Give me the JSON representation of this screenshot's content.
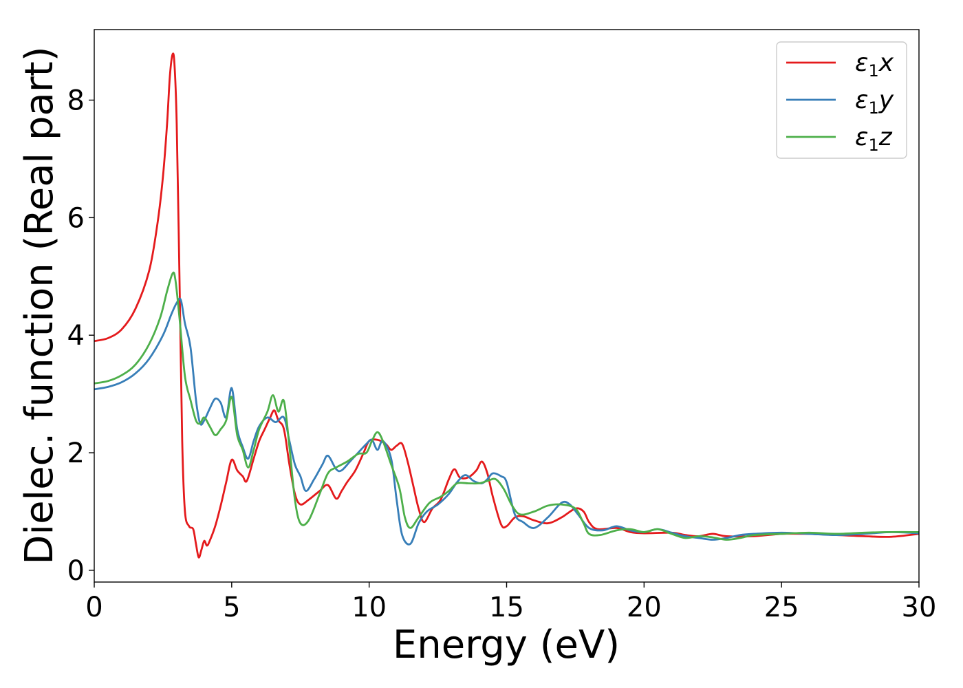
{
  "chart_data": {
    "type": "line",
    "title": "",
    "xlabel": "Energy (eV)",
    "ylabel": "Dielec. function (Real part)",
    "xlim": [
      0,
      30
    ],
    "ylim": [
      -0.2,
      9.2
    ],
    "xticks": [
      0,
      5,
      10,
      15,
      20,
      25,
      30
    ],
    "yticks": [
      0,
      2,
      4,
      6,
      8
    ],
    "grid": false,
    "legend_position": "top-right",
    "series": [
      {
        "name": "ε₁x",
        "legend_main": "ε",
        "legend_sub": "1",
        "legend_var": "x",
        "color": "#e41a1c",
        "points": [
          [
            0,
            3.9
          ],
          [
            0.5,
            3.95
          ],
          [
            1.0,
            4.1
          ],
          [
            1.5,
            4.45
          ],
          [
            2.0,
            5.1
          ],
          [
            2.3,
            5.9
          ],
          [
            2.5,
            6.7
          ],
          [
            2.65,
            7.6
          ],
          [
            2.75,
            8.4
          ],
          [
            2.85,
            8.78
          ],
          [
            2.92,
            8.6
          ],
          [
            3.0,
            7.6
          ],
          [
            3.1,
            5.0
          ],
          [
            3.2,
            2.2
          ],
          [
            3.3,
            1.0
          ],
          [
            3.45,
            0.75
          ],
          [
            3.6,
            0.7
          ],
          [
            3.7,
            0.45
          ],
          [
            3.8,
            0.22
          ],
          [
            3.9,
            0.35
          ],
          [
            4.0,
            0.5
          ],
          [
            4.1,
            0.42
          ],
          [
            4.2,
            0.5
          ],
          [
            4.4,
            0.75
          ],
          [
            4.6,
            1.1
          ],
          [
            4.8,
            1.5
          ],
          [
            5.0,
            1.88
          ],
          [
            5.2,
            1.7
          ],
          [
            5.4,
            1.6
          ],
          [
            5.55,
            1.52
          ],
          [
            5.8,
            1.9
          ],
          [
            6.0,
            2.2
          ],
          [
            6.2,
            2.4
          ],
          [
            6.4,
            2.6
          ],
          [
            6.55,
            2.72
          ],
          [
            6.7,
            2.55
          ],
          [
            6.9,
            2.4
          ],
          [
            7.1,
            1.8
          ],
          [
            7.3,
            1.3
          ],
          [
            7.5,
            1.12
          ],
          [
            7.8,
            1.2
          ],
          [
            8.2,
            1.35
          ],
          [
            8.5,
            1.45
          ],
          [
            8.8,
            1.22
          ],
          [
            9.0,
            1.35
          ],
          [
            9.2,
            1.5
          ],
          [
            9.5,
            1.7
          ],
          [
            9.8,
            2.0
          ],
          [
            10.0,
            2.2
          ],
          [
            10.3,
            2.22
          ],
          [
            10.6,
            2.15
          ],
          [
            10.8,
            2.05
          ],
          [
            11.0,
            2.12
          ],
          [
            11.2,
            2.15
          ],
          [
            11.4,
            1.85
          ],
          [
            11.6,
            1.45
          ],
          [
            11.8,
            1.05
          ],
          [
            12.0,
            0.82
          ],
          [
            12.3,
            1.05
          ],
          [
            12.6,
            1.2
          ],
          [
            12.9,
            1.55
          ],
          [
            13.1,
            1.72
          ],
          [
            13.3,
            1.58
          ],
          [
            13.6,
            1.58
          ],
          [
            13.9,
            1.7
          ],
          [
            14.1,
            1.85
          ],
          [
            14.3,
            1.65
          ],
          [
            14.5,
            1.25
          ],
          [
            14.8,
            0.78
          ],
          [
            15.0,
            0.75
          ],
          [
            15.3,
            0.9
          ],
          [
            15.6,
            0.92
          ],
          [
            16.0,
            0.85
          ],
          [
            16.5,
            0.8
          ],
          [
            17.0,
            0.9
          ],
          [
            17.5,
            1.05
          ],
          [
            17.8,
            1.0
          ],
          [
            18.0,
            0.82
          ],
          [
            18.3,
            0.7
          ],
          [
            19.0,
            0.72
          ],
          [
            19.5,
            0.65
          ],
          [
            20.0,
            0.63
          ],
          [
            21.0,
            0.64
          ],
          [
            21.5,
            0.6
          ],
          [
            22.0,
            0.58
          ],
          [
            22.5,
            0.62
          ],
          [
            23.0,
            0.58
          ],
          [
            24.0,
            0.58
          ],
          [
            25.0,
            0.62
          ],
          [
            26.0,
            0.62
          ],
          [
            27.0,
            0.6
          ],
          [
            28.0,
            0.58
          ],
          [
            29.0,
            0.57
          ],
          [
            30.0,
            0.62
          ]
        ]
      },
      {
        "name": "ε₁y",
        "legend_main": "ε",
        "legend_sub": "1",
        "legend_var": "y",
        "color": "#377eb8",
        "points": [
          [
            0,
            3.08
          ],
          [
            0.5,
            3.12
          ],
          [
            1.0,
            3.2
          ],
          [
            1.5,
            3.35
          ],
          [
            2.0,
            3.6
          ],
          [
            2.5,
            4.0
          ],
          [
            2.8,
            4.35
          ],
          [
            3.0,
            4.55
          ],
          [
            3.15,
            4.6
          ],
          [
            3.3,
            4.2
          ],
          [
            3.5,
            3.8
          ],
          [
            3.7,
            2.9
          ],
          [
            3.85,
            2.5
          ],
          [
            4.0,
            2.55
          ],
          [
            4.2,
            2.75
          ],
          [
            4.4,
            2.92
          ],
          [
            4.6,
            2.85
          ],
          [
            4.8,
            2.6
          ],
          [
            5.0,
            3.1
          ],
          [
            5.2,
            2.4
          ],
          [
            5.4,
            2.1
          ],
          [
            5.6,
            1.9
          ],
          [
            5.8,
            2.2
          ],
          [
            6.0,
            2.45
          ],
          [
            6.3,
            2.6
          ],
          [
            6.6,
            2.52
          ],
          [
            6.9,
            2.6
          ],
          [
            7.1,
            2.2
          ],
          [
            7.3,
            1.8
          ],
          [
            7.5,
            1.6
          ],
          [
            7.7,
            1.35
          ],
          [
            8.0,
            1.55
          ],
          [
            8.3,
            1.8
          ],
          [
            8.5,
            1.95
          ],
          [
            8.8,
            1.72
          ],
          [
            9.0,
            1.7
          ],
          [
            9.3,
            1.85
          ],
          [
            9.6,
            2.0
          ],
          [
            9.9,
            2.15
          ],
          [
            10.1,
            2.22
          ],
          [
            10.3,
            2.05
          ],
          [
            10.5,
            2.2
          ],
          [
            10.8,
            1.9
          ],
          [
            11.0,
            1.2
          ],
          [
            11.2,
            0.6
          ],
          [
            11.5,
            0.45
          ],
          [
            11.8,
            0.8
          ],
          [
            12.1,
            1.0
          ],
          [
            12.5,
            1.12
          ],
          [
            12.9,
            1.3
          ],
          [
            13.2,
            1.5
          ],
          [
            13.5,
            1.62
          ],
          [
            13.8,
            1.52
          ],
          [
            14.1,
            1.48
          ],
          [
            14.3,
            1.55
          ],
          [
            14.5,
            1.65
          ],
          [
            14.8,
            1.6
          ],
          [
            15.0,
            1.5
          ],
          [
            15.3,
            0.95
          ],
          [
            15.6,
            0.82
          ],
          [
            16.0,
            0.72
          ],
          [
            16.5,
            0.9
          ],
          [
            17.0,
            1.15
          ],
          [
            17.3,
            1.12
          ],
          [
            17.6,
            0.95
          ],
          [
            18.0,
            0.72
          ],
          [
            18.5,
            0.68
          ],
          [
            19.0,
            0.75
          ],
          [
            19.5,
            0.68
          ],
          [
            20.0,
            0.65
          ],
          [
            20.5,
            0.7
          ],
          [
            21.0,
            0.64
          ],
          [
            21.5,
            0.58
          ],
          [
            22.0,
            0.55
          ],
          [
            22.5,
            0.52
          ],
          [
            23.0,
            0.55
          ],
          [
            23.5,
            0.6
          ],
          [
            24.0,
            0.62
          ],
          [
            25.0,
            0.64
          ],
          [
            26.0,
            0.62
          ],
          [
            27.0,
            0.6
          ],
          [
            28.0,
            0.62
          ],
          [
            29.0,
            0.65
          ],
          [
            30.0,
            0.63
          ]
        ]
      },
      {
        "name": "ε₁z",
        "legend_main": "ε",
        "legend_sub": "1",
        "legend_var": "z",
        "color": "#4daf4a",
        "points": [
          [
            0,
            3.18
          ],
          [
            0.5,
            3.22
          ],
          [
            1.0,
            3.32
          ],
          [
            1.5,
            3.5
          ],
          [
            2.0,
            3.85
          ],
          [
            2.4,
            4.3
          ],
          [
            2.65,
            4.75
          ],
          [
            2.85,
            5.05
          ],
          [
            2.95,
            4.95
          ],
          [
            3.1,
            4.3
          ],
          [
            3.3,
            3.3
          ],
          [
            3.5,
            2.9
          ],
          [
            3.7,
            2.55
          ],
          [
            3.85,
            2.5
          ],
          [
            4.0,
            2.6
          ],
          [
            4.2,
            2.45
          ],
          [
            4.4,
            2.3
          ],
          [
            4.6,
            2.4
          ],
          [
            4.8,
            2.55
          ],
          [
            5.0,
            2.95
          ],
          [
            5.2,
            2.3
          ],
          [
            5.4,
            2.05
          ],
          [
            5.6,
            1.75
          ],
          [
            5.8,
            2.05
          ],
          [
            6.0,
            2.4
          ],
          [
            6.3,
            2.7
          ],
          [
            6.5,
            2.98
          ],
          [
            6.7,
            2.7
          ],
          [
            6.9,
            2.88
          ],
          [
            7.1,
            2.1
          ],
          [
            7.3,
            1.2
          ],
          [
            7.5,
            0.8
          ],
          [
            7.8,
            0.85
          ],
          [
            8.2,
            1.3
          ],
          [
            8.5,
            1.65
          ],
          [
            8.8,
            1.75
          ],
          [
            9.2,
            1.85
          ],
          [
            9.6,
            1.98
          ],
          [
            9.9,
            2.0
          ],
          [
            10.1,
            2.2
          ],
          [
            10.3,
            2.35
          ],
          [
            10.5,
            2.2
          ],
          [
            10.8,
            1.8
          ],
          [
            11.1,
            1.4
          ],
          [
            11.3,
            0.9
          ],
          [
            11.5,
            0.72
          ],
          [
            11.8,
            0.9
          ],
          [
            12.2,
            1.15
          ],
          [
            12.6,
            1.25
          ],
          [
            12.9,
            1.35
          ],
          [
            13.2,
            1.48
          ],
          [
            13.6,
            1.48
          ],
          [
            14.0,
            1.48
          ],
          [
            14.3,
            1.52
          ],
          [
            14.6,
            1.55
          ],
          [
            14.9,
            1.38
          ],
          [
            15.2,
            1.1
          ],
          [
            15.5,
            0.95
          ],
          [
            16.0,
            1.0
          ],
          [
            16.5,
            1.1
          ],
          [
            17.0,
            1.12
          ],
          [
            17.5,
            1.05
          ],
          [
            17.8,
            0.8
          ],
          [
            18.0,
            0.62
          ],
          [
            18.4,
            0.6
          ],
          [
            19.0,
            0.68
          ],
          [
            19.5,
            0.7
          ],
          [
            20.0,
            0.65
          ],
          [
            20.5,
            0.7
          ],
          [
            21.0,
            0.62
          ],
          [
            21.5,
            0.55
          ],
          [
            22.0,
            0.58
          ],
          [
            22.5,
            0.56
          ],
          [
            23.0,
            0.52
          ],
          [
            23.5,
            0.55
          ],
          [
            24.0,
            0.6
          ],
          [
            25.0,
            0.62
          ],
          [
            26.0,
            0.64
          ],
          [
            27.0,
            0.62
          ],
          [
            28.0,
            0.64
          ],
          [
            29.0,
            0.65
          ],
          [
            30.0,
            0.65
          ]
        ]
      }
    ]
  }
}
